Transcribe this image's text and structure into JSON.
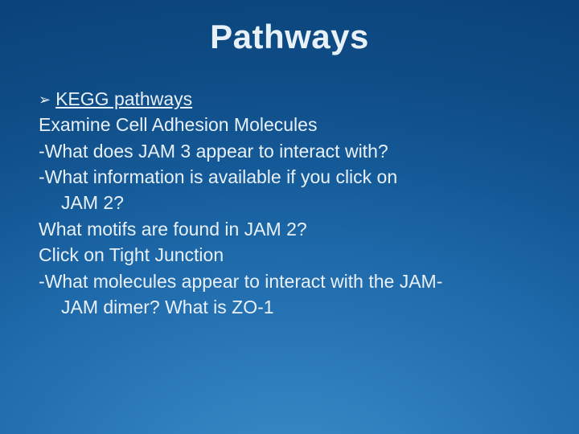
{
  "slide": {
    "background_gradient_center": "#3a8cc8",
    "background_gradient_edge": "#0a4278",
    "text_color": "#e8f0f8",
    "title_fontsize": 42,
    "body_fontsize": 23,
    "title": "Pathways",
    "bullet_marker": "➢",
    "link_text": "KEGG pathways",
    "lines": {
      "l1": "Examine Cell Adhesion Molecules",
      "l2": "-What does JAM 3 appear to interact with?",
      "l3": "-What information is available if you click on",
      "l3b": "JAM 2?",
      "l4": "What motifs are found in JAM 2?",
      "l5": "Click on Tight Junction",
      "l6": "-What molecules appear to interact with the JAM-",
      "l6b": "JAM dimer?  What is ZO-1"
    }
  }
}
